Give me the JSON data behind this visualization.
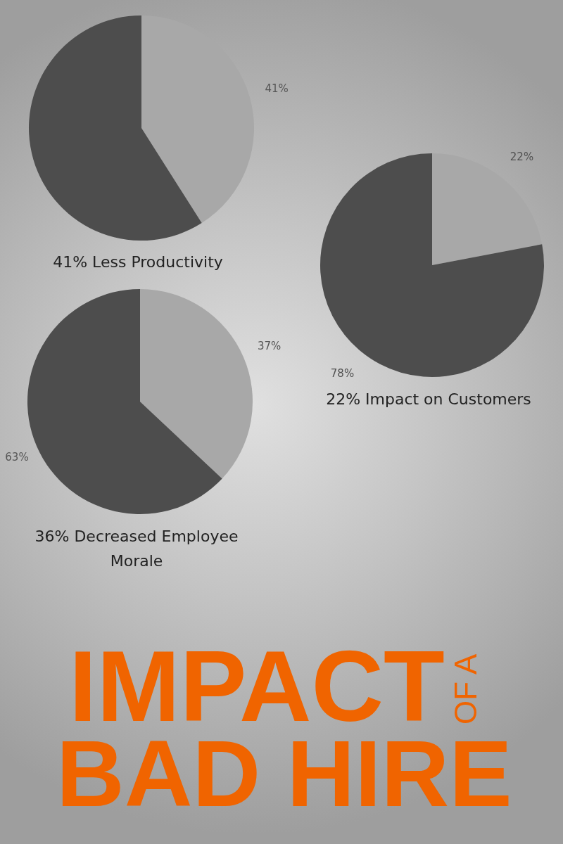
{
  "chart_data": [
    {
      "type": "pie",
      "title": "41% Less Productivity",
      "categories": [
        null,
        null
      ],
      "values": [
        41,
        59
      ],
      "colors": [
        "#a8a8a8",
        "#4d4d4d"
      ],
      "value_labels": [
        "41%",
        null
      ]
    },
    {
      "type": "pie",
      "title": "22% Impact on Customers",
      "categories": [
        null,
        null
      ],
      "values": [
        22,
        78
      ],
      "colors": [
        "#a8a8a8",
        "#4d4d4d"
      ],
      "value_labels": [
        "22%",
        "78%"
      ]
    },
    {
      "type": "pie",
      "title": "36% Decreased Employee Morale",
      "categories": [
        null,
        null
      ],
      "values": [
        37,
        63
      ],
      "colors": [
        "#a8a8a8",
        "#4d4d4d"
      ],
      "value_labels": [
        "37%",
        "63%"
      ]
    },
    {
      "type": "other",
      "annotations": [
        "IMPACT",
        "OF A",
        "BAD HIRE"
      ]
    }
  ]
}
